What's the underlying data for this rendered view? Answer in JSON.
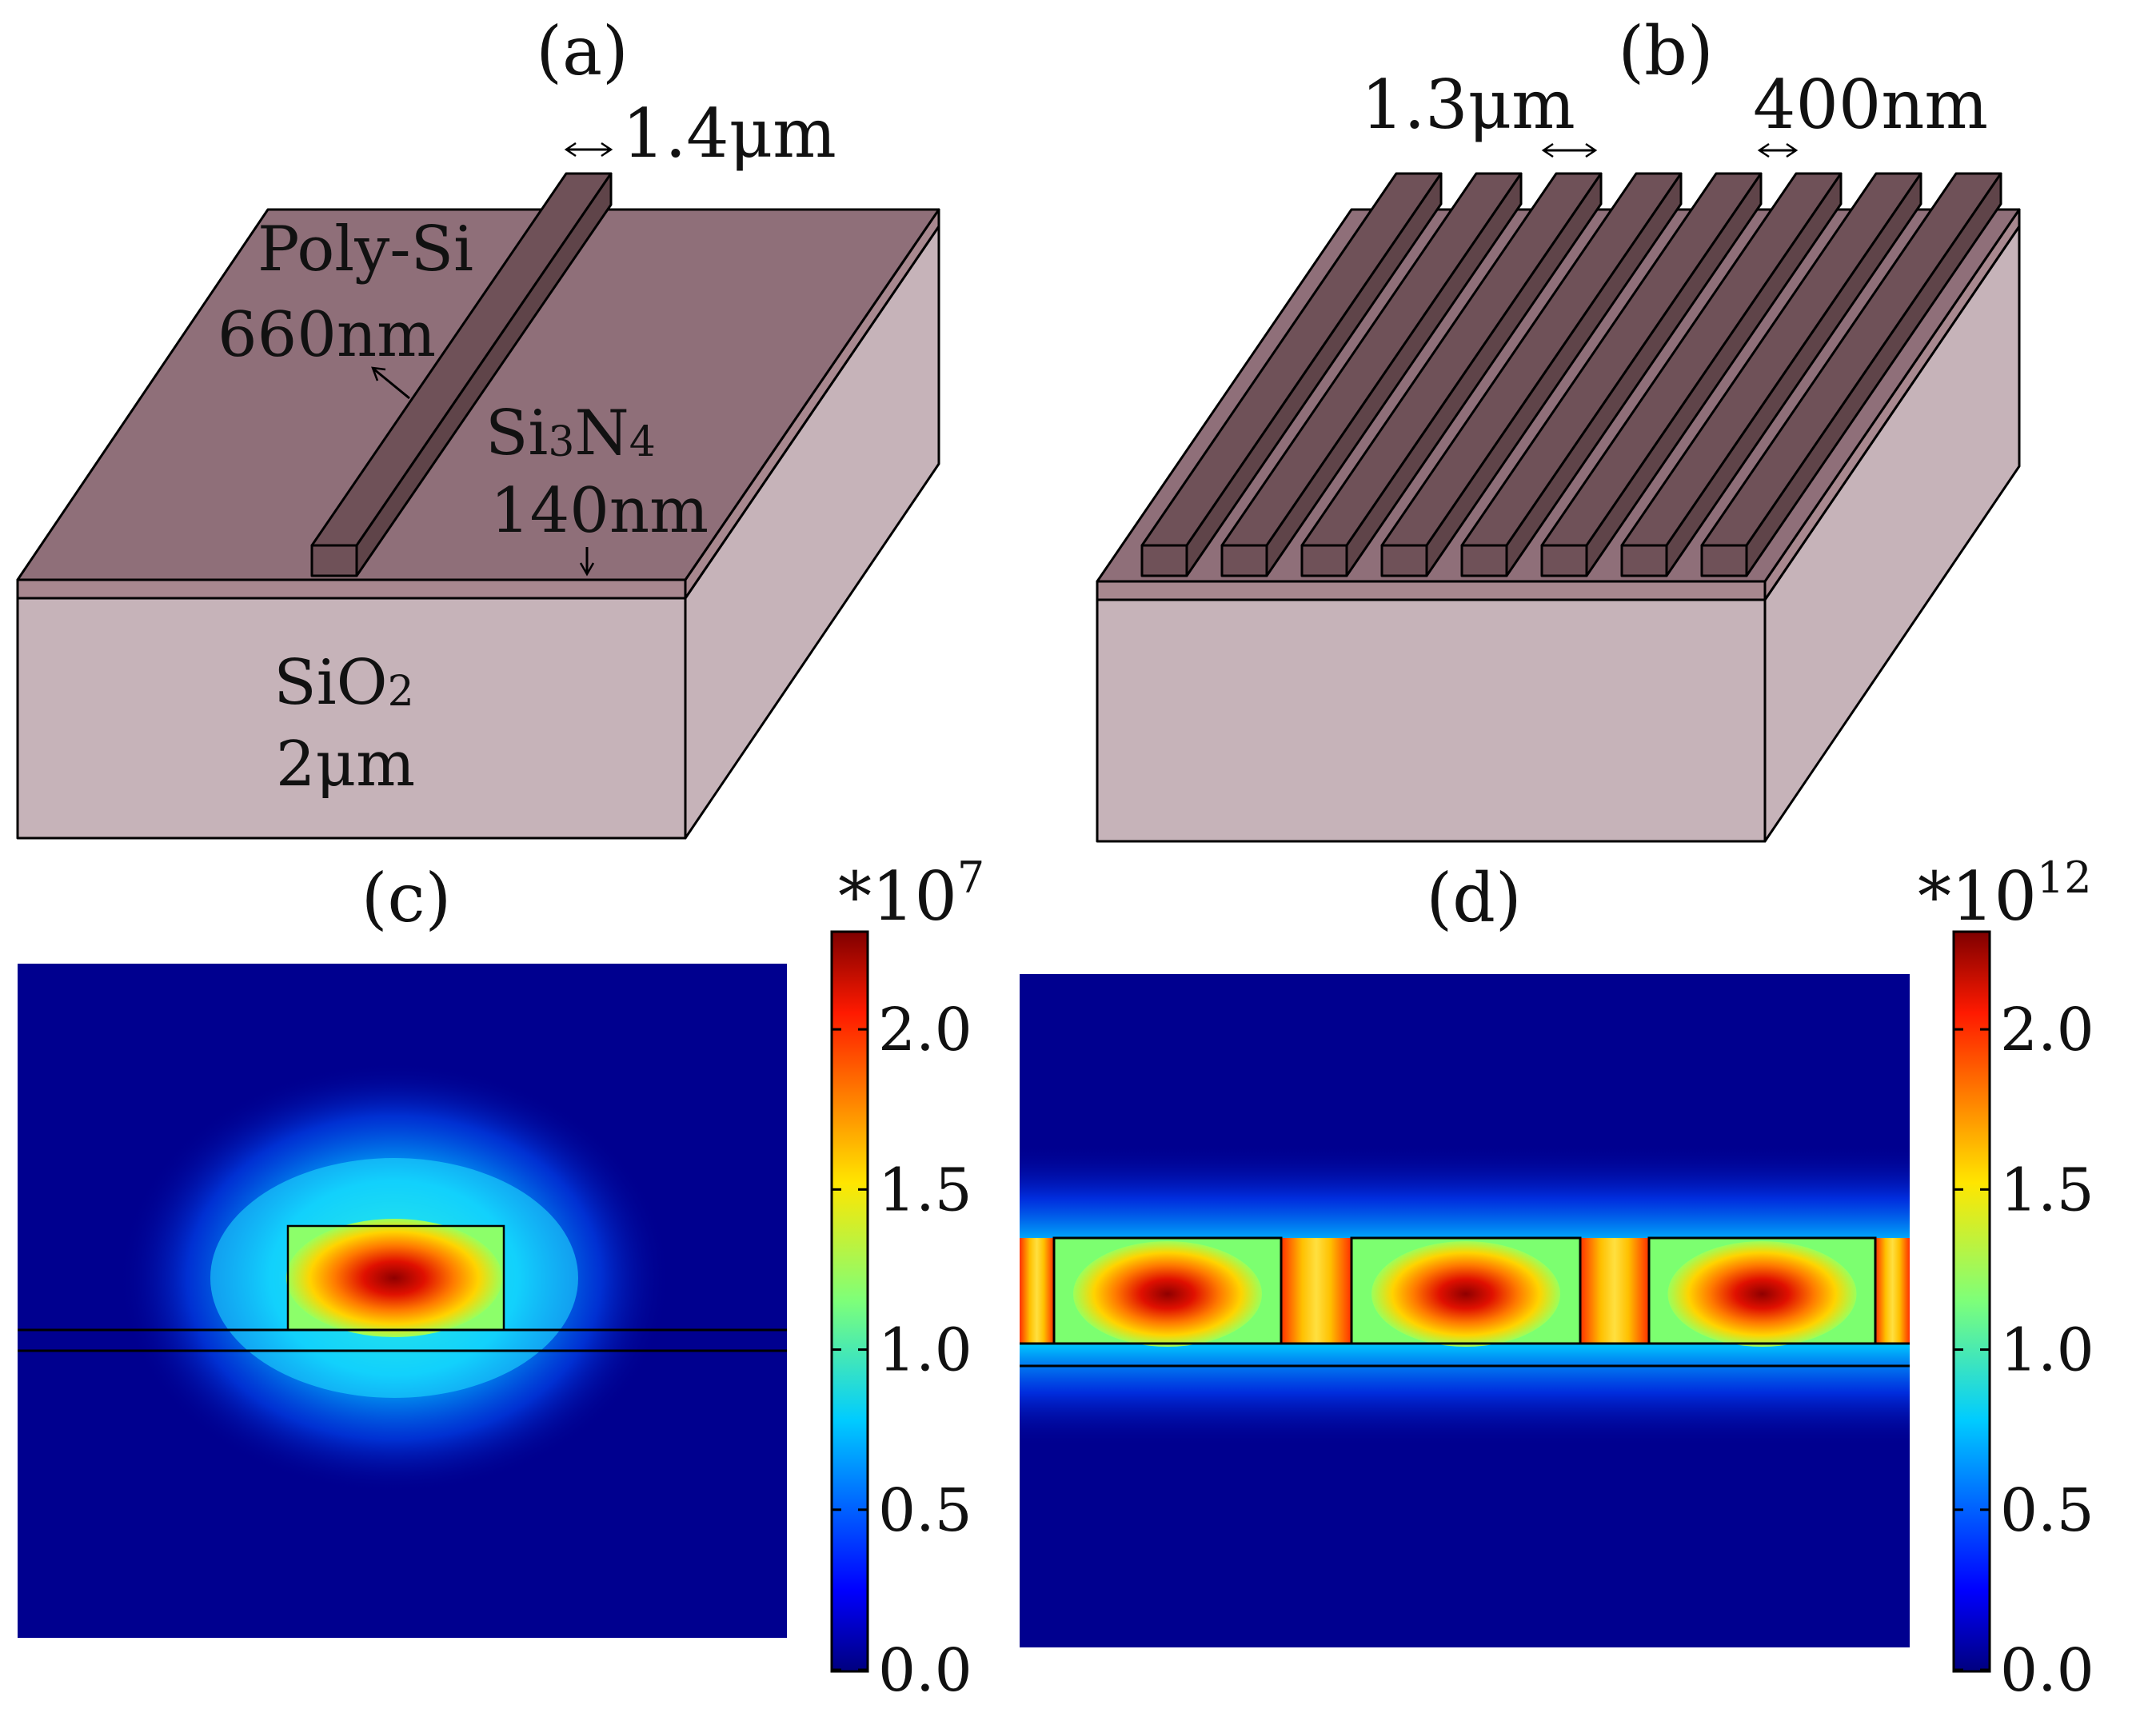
{
  "panels": {
    "a": {
      "label": "(a)",
      "dim_width": "1.4μm",
      "polysi_name": "Poly-Si",
      "polysi_thickness": "660nm",
      "nitride_name_a": "Si",
      "nitride_sub_a": "3",
      "nitride_name_b": "N",
      "nitride_sub_b": "4",
      "nitride_thickness": "140nm",
      "oxide_name": "SiO",
      "oxide_sub": "2",
      "oxide_thickness": "2μm"
    },
    "b": {
      "label": "(b)",
      "dim_pitch": "1.3μm",
      "dim_gap": "400nm"
    },
    "c": {
      "label": "(c)",
      "colorbar_multiplier": "*10",
      "colorbar_exponent": "7",
      "colorbar_ticks": [
        "0.0",
        "0.5",
        "1.0",
        "1.5",
        "2.0"
      ]
    },
    "d": {
      "label": "(d)",
      "colorbar_multiplier": "*10",
      "colorbar_exponent": "12",
      "colorbar_ticks": [
        "0.0",
        "0.5",
        "1.0",
        "1.5",
        "2.0"
      ]
    }
  },
  "colors": {
    "top_surface": "#8f6f79",
    "side_surface": "#c6b3b9",
    "ridge_top": "#6f5158",
    "ridge_side": "#5f4449",
    "field_background": "#00008f"
  }
}
